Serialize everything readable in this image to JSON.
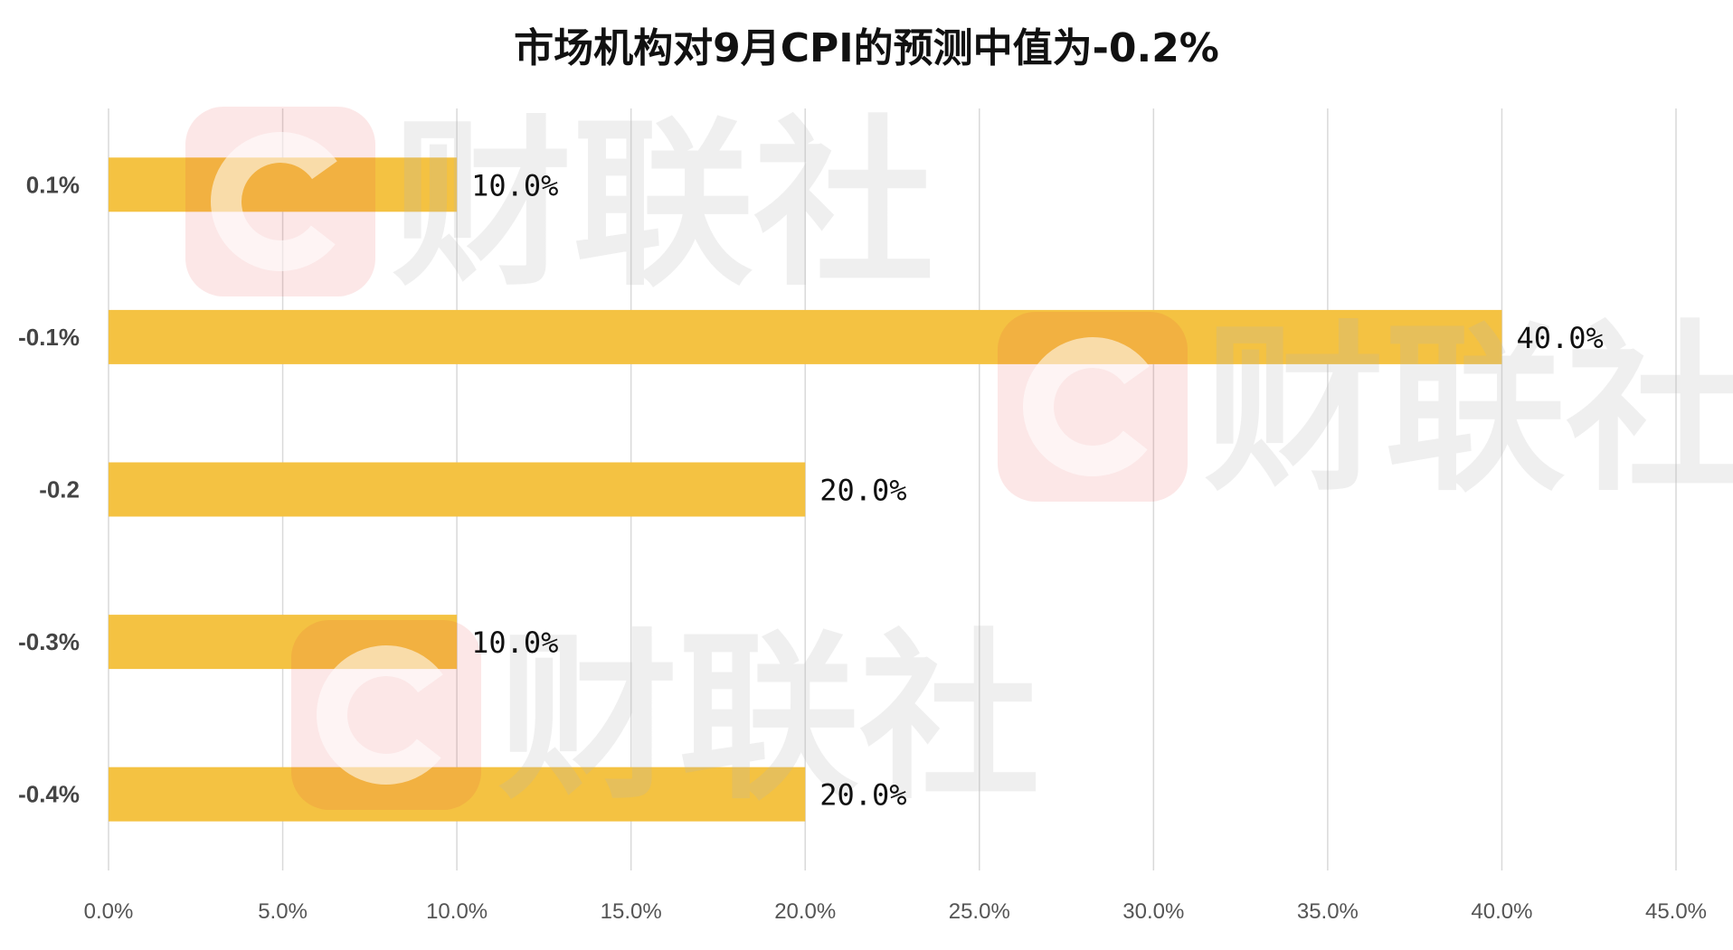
{
  "chart_data": {
    "type": "bar",
    "orientation": "horizontal",
    "title": "市场机构对9月CPI的预测中值为-0.2%",
    "categories": [
      "0.1%",
      "-0.1%",
      "-0.2",
      "-0.3%",
      "-0.4%"
    ],
    "values": [
      10.0,
      40.0,
      20.0,
      10.0,
      20.0
    ],
    "data_labels": [
      "10.0%",
      "40.0%",
      "20.0%",
      "10.0%",
      "20.0%"
    ],
    "xlim": [
      0,
      45
    ],
    "x_ticks": [
      0,
      5,
      10,
      15,
      20,
      25,
      30,
      35,
      40,
      45
    ],
    "x_tick_labels": [
      "0.0%",
      "5.0%",
      "10.0%",
      "15.0%",
      "20.0%",
      "25.0%",
      "30.0%",
      "35.0%",
      "40.0%",
      "45.0%"
    ],
    "grid": "vertical",
    "legend": "none",
    "bar_color": "#F4C242"
  },
  "watermark": {
    "text": "财联社",
    "logo_letter": "C",
    "logo_color": "#E8383D"
  }
}
